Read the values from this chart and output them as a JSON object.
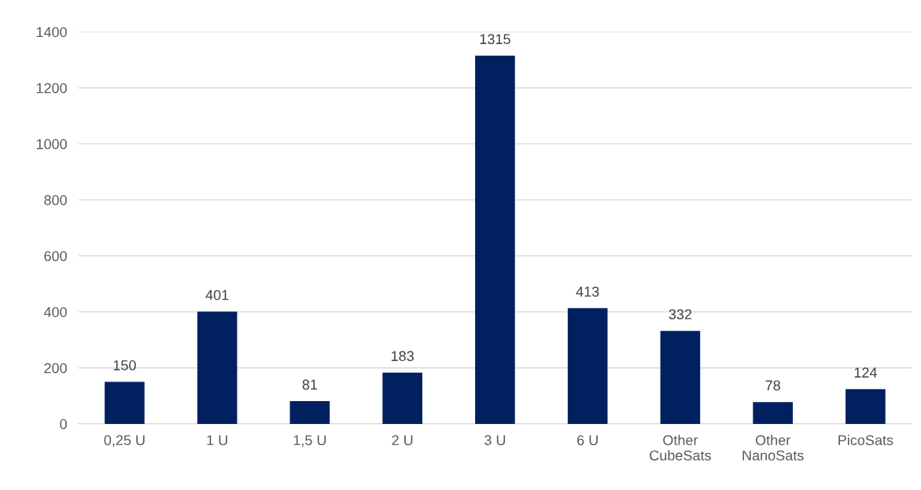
{
  "chart_data": {
    "type": "bar",
    "categories": [
      "0,25 U",
      "1 U",
      "1,5 U",
      "2 U",
      "3 U",
      "6 U",
      "Other\nCubeSats",
      "Other\nNanoSats",
      "PicoSats"
    ],
    "values": [
      150,
      401,
      81,
      183,
      1315,
      413,
      332,
      78,
      124
    ],
    "color": "#002060",
    "ylim": [
      0,
      1400
    ],
    "yticks": [
      0,
      200,
      400,
      600,
      800,
      1000,
      1200,
      1400
    ],
    "grid": "y",
    "data_labels": true,
    "legend": false
  }
}
